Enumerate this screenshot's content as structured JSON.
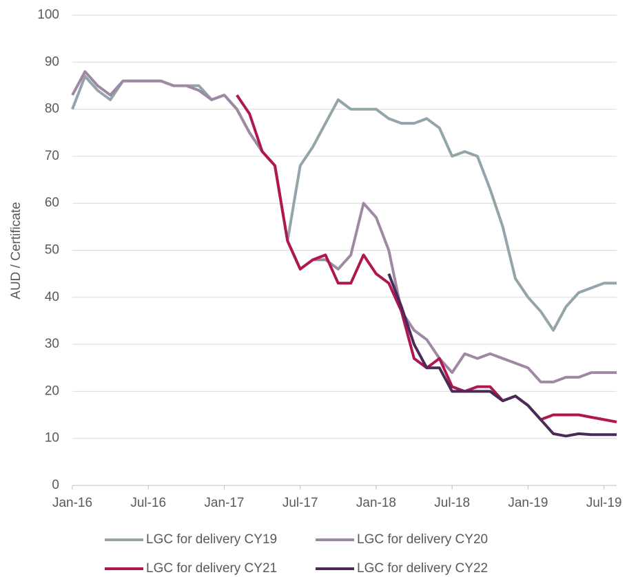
{
  "chart_data": {
    "type": "line",
    "y_label": "AUD / Certificate",
    "x": [
      "2016-01",
      "2016-02",
      "2016-03",
      "2016-04",
      "2016-05",
      "2016-06",
      "2016-07",
      "2016-08",
      "2016-09",
      "2016-10",
      "2016-11",
      "2016-12",
      "2017-01",
      "2017-02",
      "2017-03",
      "2017-04",
      "2017-05",
      "2017-06",
      "2017-07",
      "2017-08",
      "2017-09",
      "2017-10",
      "2017-11",
      "2017-12",
      "2018-01",
      "2018-02",
      "2018-03",
      "2018-04",
      "2018-05",
      "2018-06",
      "2018-07",
      "2018-08",
      "2018-09",
      "2018-10",
      "2018-11",
      "2018-12",
      "2019-01",
      "2019-02",
      "2019-03",
      "2019-04",
      "2019-05",
      "2019-06",
      "2019-07",
      "2019-08"
    ],
    "series": [
      {
        "name": "LGC for delivery CY19",
        "color": "#94a5aa",
        "values": [
          80,
          87,
          84,
          82,
          86,
          86,
          86,
          86,
          85,
          85,
          85,
          82,
          83,
          80,
          75,
          71,
          68,
          52,
          68,
          72,
          77,
          82,
          80,
          80,
          80,
          78,
          77,
          77,
          78,
          76,
          70,
          71,
          70,
          63,
          55,
          44,
          40,
          37,
          33,
          38,
          41,
          42,
          43,
          43
        ]
      },
      {
        "name": "LGC for delivery CY20",
        "color": "#9e88a3",
        "values": [
          83,
          88,
          85,
          83,
          86,
          86,
          86,
          86,
          85,
          85,
          84,
          82,
          83,
          80,
          75,
          71,
          68,
          52,
          46,
          48,
          48,
          46,
          49,
          60,
          57,
          50,
          37,
          33,
          31,
          27,
          24,
          28,
          27,
          28,
          27,
          26,
          25,
          22,
          22,
          23,
          23,
          24,
          24,
          24
        ]
      },
      {
        "name": "LGC for delivery CY21",
        "color": "#b0164f",
        "values": [
          null,
          null,
          null,
          null,
          null,
          null,
          null,
          null,
          null,
          null,
          null,
          null,
          null,
          83,
          79,
          71,
          68,
          52,
          46,
          48,
          49,
          43,
          43,
          49,
          45,
          43,
          37,
          27,
          25,
          27,
          21,
          20,
          21,
          21,
          18,
          19,
          17,
          14,
          15,
          15,
          15,
          14.5,
          14,
          13.5
        ]
      },
      {
        "name": "LGC for delivery CY22",
        "color": "#4b2a5a",
        "values": [
          null,
          null,
          null,
          null,
          null,
          null,
          null,
          null,
          null,
          null,
          null,
          null,
          null,
          null,
          null,
          null,
          null,
          null,
          null,
          null,
          null,
          null,
          null,
          null,
          null,
          45,
          38,
          30,
          25,
          25,
          20,
          20,
          20,
          20,
          18,
          19,
          17,
          14,
          11,
          10.5,
          11,
          10.8,
          10.8,
          10.8
        ]
      }
    ],
    "xlim": [
      "2016-01",
      "2019-08"
    ],
    "xticks": [
      {
        "value": "2016-01",
        "label": "Jan-16"
      },
      {
        "value": "2016-07",
        "label": "Jul-16"
      },
      {
        "value": "2017-01",
        "label": "Jan-17"
      },
      {
        "value": "2017-07",
        "label": "Jul-17"
      },
      {
        "value": "2018-01",
        "label": "Jan-18"
      },
      {
        "value": "2018-07",
        "label": "Jul-18"
      },
      {
        "value": "2019-01",
        "label": "Jan-19"
      },
      {
        "value": "2019-07",
        "label": "Jul-19"
      }
    ],
    "ylim": [
      0,
      100
    ],
    "yticks": [
      0,
      10,
      20,
      30,
      40,
      50,
      60,
      70,
      80,
      90,
      100
    ],
    "grid": true,
    "legend": "bottom"
  }
}
